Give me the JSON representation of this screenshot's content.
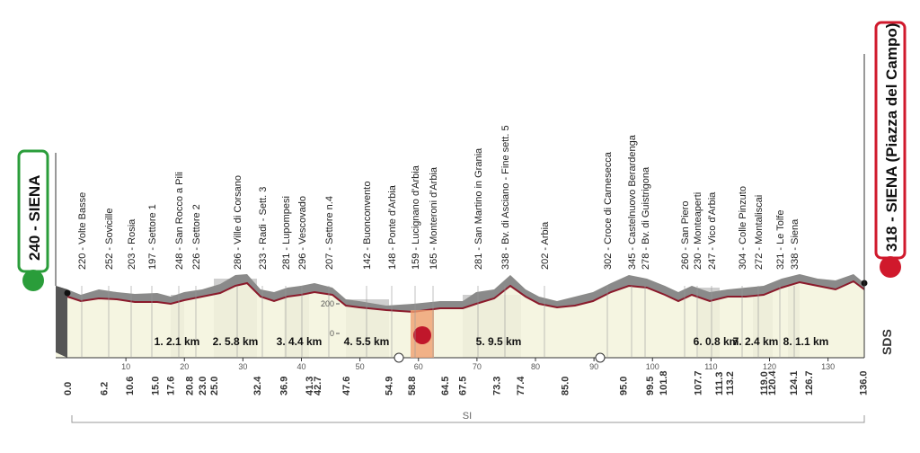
{
  "start": "240 - SIENA",
  "finish": "318 - SIENA (Piazza del Campo)",
  "waypoints": [
    "220 - Volte Basse",
    "252 - Sovicille",
    "203 - Rosia",
    "197 - Settore 1",
    "248 - San Rocco a Pili",
    "226 - Settore 2",
    "286 - Ville di Corsano",
    "233 - Radi - Sett. 3",
    "281 - Lupompesi",
    "296 - Vescovado",
    "207 - Settore n.4",
    "142 - Buonconvento",
    "148 - Ponte d'Arbia",
    "159 - Lucignano d'Arbia",
    "165 - Monteroni d'Arbia",
    "281 - San Martino in Grania",
    "338 - Bv. di Asciano - Fine sett. 5",
    "202 - Arbia",
    "302 - Croce di Carnesecca",
    "345 - Castelnuovo Berardenga",
    "278 - Bv. di Guistrigona",
    "260 - San Piero",
    "230 - Monteaperti",
    "247 - Vico d'Arbia",
    "304 - Colle Pinzuto",
    "272 - Montaliscai",
    "321 - Le Tolfe",
    "338 - Siena"
  ],
  "km_labels": [
    "0.0",
    "6.2",
    "10.6",
    "15.0",
    "17.6",
    "20.8",
    "23.0",
    "25.0",
    "32.4",
    "36.9",
    "41.3",
    "42.7",
    "47.6",
    "54.9",
    "58.8",
    "64.5",
    "67.5",
    "73.3",
    "77.4",
    "85.0",
    "95.0",
    "99.5",
    "101.8",
    "107.7",
    "111.3",
    "113.2",
    "119.0",
    "120.4",
    "124.1",
    "126.7",
    "136.0"
  ],
  "axis_ticks": [
    10,
    20,
    30,
    40,
    50,
    60,
    70,
    80,
    90,
    100,
    110,
    120,
    130
  ],
  "altitude_ticks": [
    200,
    0
  ],
  "sectors": [
    "1. 2.1 km",
    "2. 5.8 km",
    "3. 4.4 km",
    "4. 5.5 km",
    "5. 9.5 km",
    "6. 0.8 km",
    "7. 2.4 km",
    "8. 1.1 km"
  ],
  "footer": "SI",
  "logo": "SDS"
}
